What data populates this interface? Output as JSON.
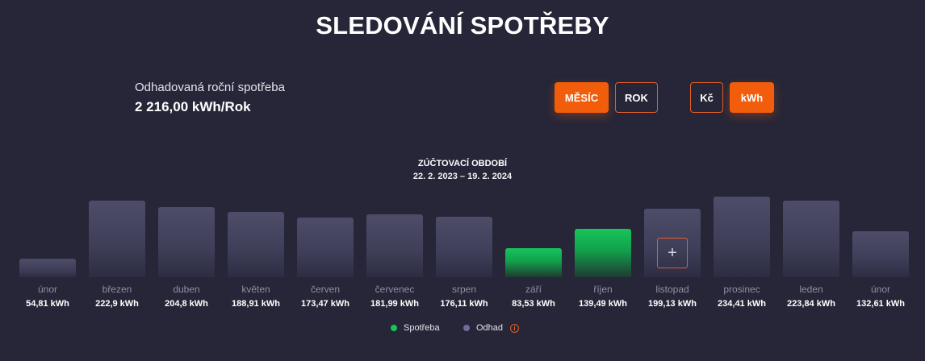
{
  "header": {
    "title": "SLEDOVÁNÍ SPOTŘEBY"
  },
  "estimate": {
    "label": "Odhadovaná roční spotřeba",
    "value": "2 216,00 kWh/Rok"
  },
  "toggles": {
    "period": [
      {
        "label": "MĚSÍC",
        "active": true
      },
      {
        "label": "ROK",
        "active": false
      }
    ],
    "unit": [
      {
        "label": "Kč",
        "active": false
      },
      {
        "label": "kWh",
        "active": true
      }
    ]
  },
  "billing": {
    "title": "ZÚČTOVACÍ OBDOBÍ",
    "range": "22. 2. 2023 – 19. 2. 2024"
  },
  "add_reading": {
    "symbol": "+"
  },
  "legend": {
    "actual": "Spotřeba",
    "estimate": "Odhad",
    "info_symbol": "i"
  },
  "colors": {
    "actual": "#17c45a",
    "estimate": "#5a5a86",
    "accent": "#f25d0c"
  },
  "chart_data": {
    "type": "bar",
    "unit": "kWh",
    "categories": [
      "únor",
      "březen",
      "duben",
      "květen",
      "červen",
      "červenec",
      "srpen",
      "září",
      "říjen",
      "listopad",
      "prosinec",
      "leden",
      "únor"
    ],
    "values": [
      54.81,
      222.9,
      204.8,
      188.91,
      173.47,
      181.99,
      176.11,
      83.53,
      139.49,
      199.13,
      234.41,
      223.84,
      132.61
    ],
    "value_labels": [
      "54,81 kWh",
      "222,9 kWh",
      "204,8 kWh",
      "188,91 kWh",
      "173,47 kWh",
      "181,99 kWh",
      "176,11 kWh",
      "83,53 kWh",
      "139,49 kWh",
      "199,13 kWh",
      "234,41 kWh",
      "223,84 kWh",
      "132,61 kWh"
    ],
    "kinds": [
      "estimate",
      "estimate",
      "estimate",
      "estimate",
      "estimate",
      "estimate",
      "estimate",
      "actual",
      "actual",
      "estimate",
      "estimate",
      "estimate",
      "estimate"
    ]
  }
}
